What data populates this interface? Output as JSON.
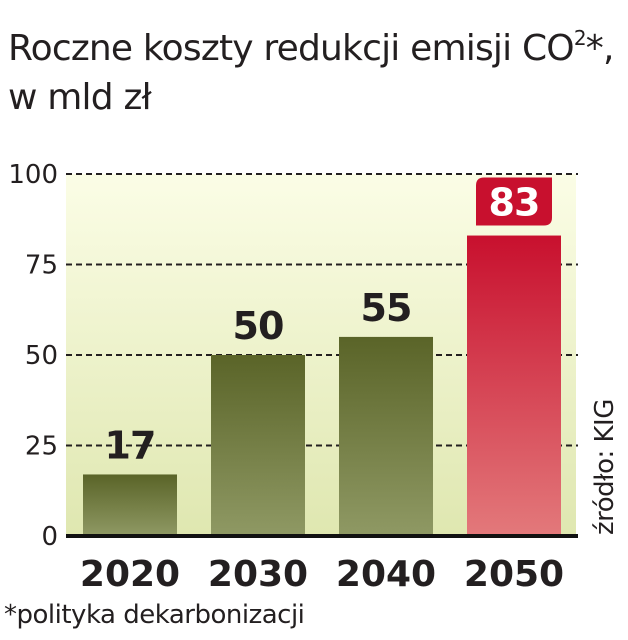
{
  "title_main": "Roczne koszty redukcji emisji CO",
  "title_sup": "2",
  "title_suffix": "*,",
  "title_line2": "w mld zł",
  "footnote": "*polityka dekarbonizacji",
  "source": "źródło: KIG",
  "colors": {
    "bar_top": "#5a6428",
    "bar_bottom": "#8f9964",
    "highlight_top": "#c8102e",
    "highlight_bottom": "#e3797b",
    "plot_bg_top": "#fbfde6",
    "plot_bg_bottom": "#dfe7b0"
  },
  "chart_data": {
    "type": "bar",
    "categories": [
      "2020",
      "2030",
      "2040",
      "2050"
    ],
    "values": [
      17,
      50,
      55,
      83
    ],
    "highlight_index": 3,
    "ylim": [
      0,
      100
    ],
    "yticks": [
      0,
      25,
      50,
      75,
      100
    ],
    "grid": "dashed horizontal",
    "title": "Roczne koszty redukcji emisji CO2*, w mld zł"
  }
}
